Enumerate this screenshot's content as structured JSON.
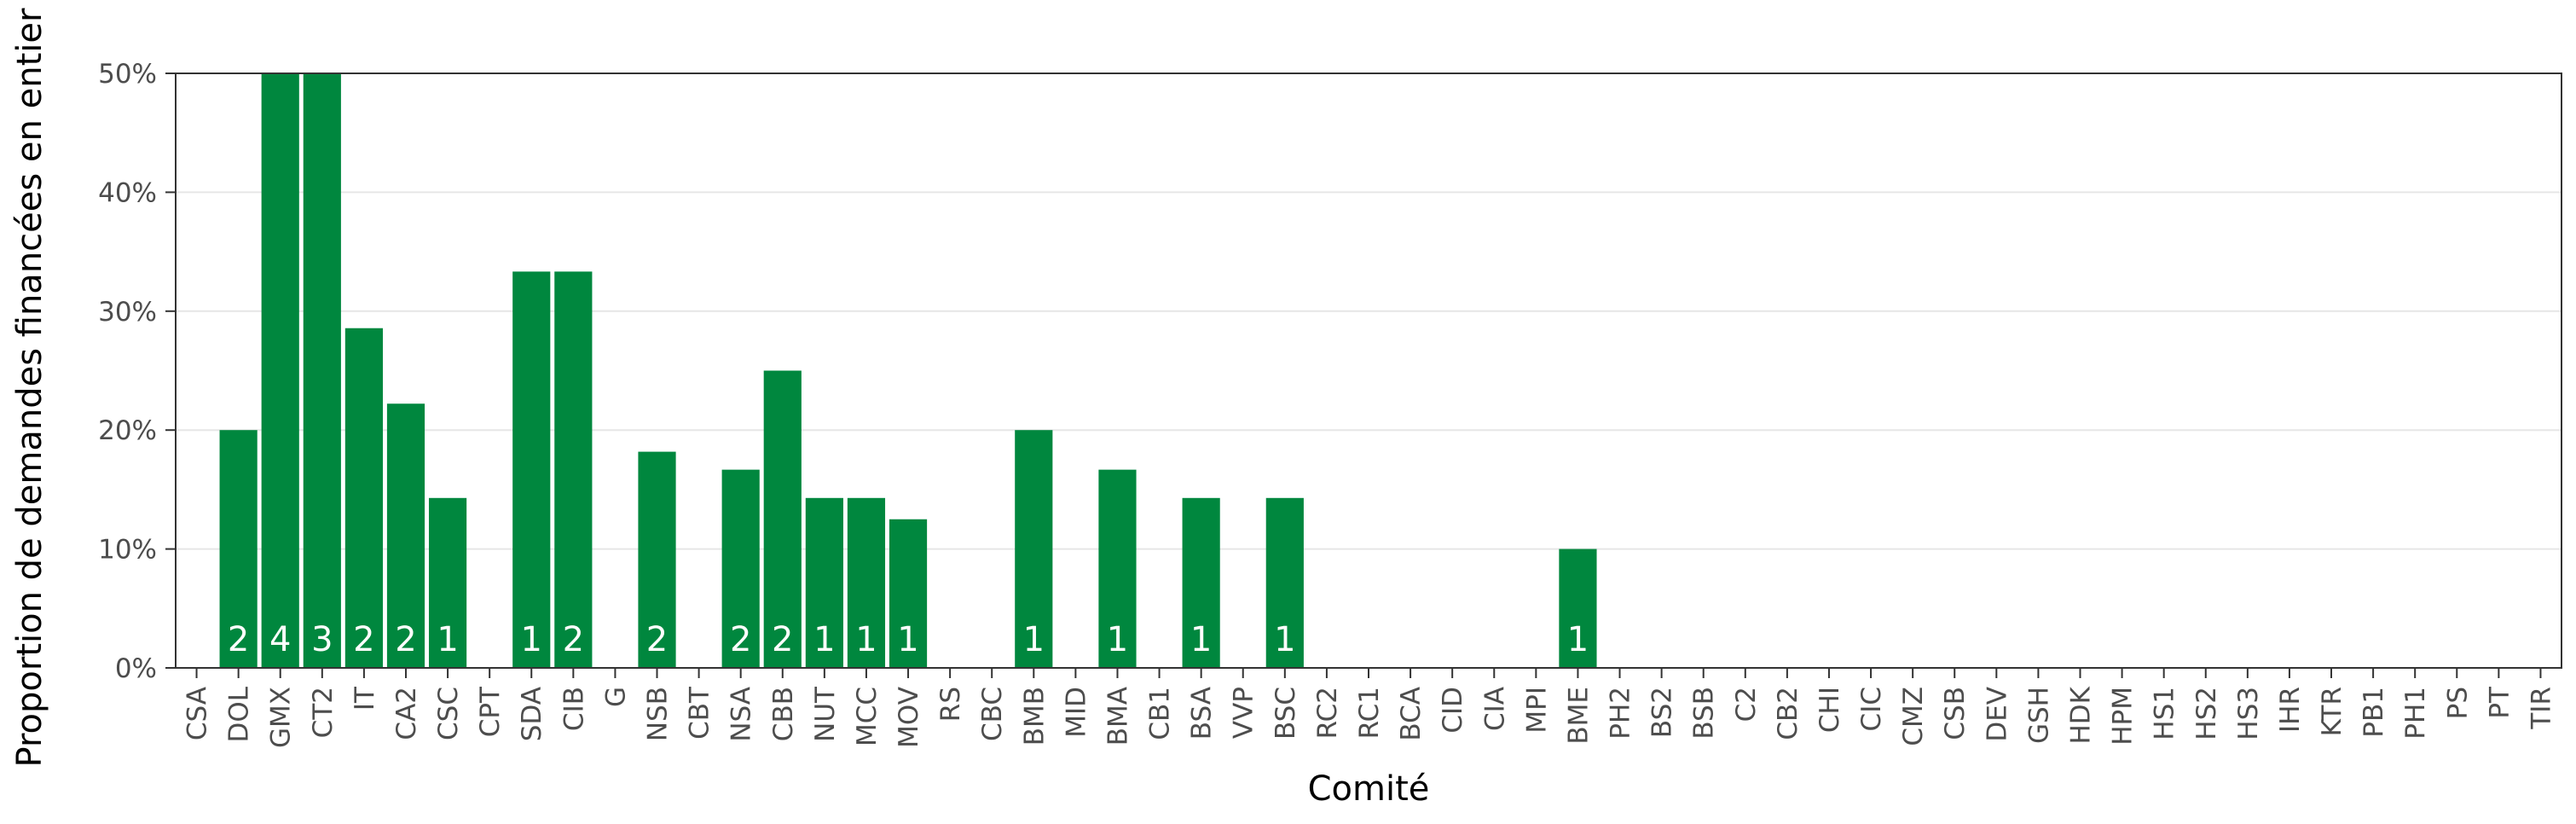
{
  "chart_data": {
    "type": "bar",
    "xlabel": "Comité",
    "ylabel": "Proportion de demandes financées en entier",
    "ylim": [
      0,
      0.5
    ],
    "y_ticks": [
      0,
      0.1,
      0.2,
      0.3,
      0.4,
      0.5
    ],
    "y_tick_labels": [
      "0%",
      "10%",
      "20%",
      "30%",
      "40%",
      "50%"
    ],
    "grid": "horizontal",
    "bar_color": "#00873E",
    "categories": [
      "CSA",
      "DOL",
      "GMX",
      "CT2",
      "IT",
      "CA2",
      "CSC",
      "CPT",
      "SDA",
      "CIB",
      "G",
      "NSB",
      "CBT",
      "NSA",
      "CBB",
      "NUT",
      "MCC",
      "MOV",
      "RS",
      "CBC",
      "BMB",
      "MID",
      "BMA",
      "CB1",
      "BSA",
      "VVP",
      "BSC",
      "RC2",
      "RC1",
      "BCA",
      "CID",
      "CIA",
      "MPI",
      "BME",
      "PH2",
      "BS2",
      "BSB",
      "C2",
      "CB2",
      "CHI",
      "CIC",
      "CMZ",
      "CSB",
      "DEV",
      "GSH",
      "HDK",
      "HPM",
      "HS1",
      "HS2",
      "HS3",
      "IHR",
      "KTR",
      "PB1",
      "PH1",
      "PS",
      "PT",
      "TIR"
    ],
    "values": [
      0,
      0.2,
      0.5,
      0.5,
      0.2857,
      0.2222,
      0.1429,
      0,
      0.3333,
      0.3333,
      0,
      0.1818,
      0,
      0.1667,
      0.25,
      0.1429,
      0.1429,
      0.125,
      0,
      0,
      0.2,
      0,
      0.1667,
      0,
      0.1429,
      0,
      0.1429,
      0,
      0,
      0,
      0,
      0,
      0,
      0.1,
      0,
      0,
      0,
      0,
      0,
      0,
      0,
      0,
      0,
      0,
      0,
      0,
      0,
      0,
      0,
      0,
      0,
      0,
      0,
      0,
      0,
      0,
      0
    ],
    "bar_labels": [
      "",
      "2",
      "4",
      "3",
      "2",
      "2",
      "1",
      "",
      "1",
      "2",
      "",
      "2",
      "",
      "2",
      "2",
      "1",
      "1",
      "1",
      "",
      "",
      "1",
      "",
      "1",
      "",
      "1",
      "",
      "1",
      "",
      "",
      "",
      "",
      "",
      "",
      "1",
      "",
      "",
      "",
      "",
      "",
      "",
      "",
      "",
      "",
      "",
      "",
      "",
      "",
      "",
      "",
      "",
      "",
      "",
      "",
      "",
      "",
      "",
      ""
    ]
  }
}
